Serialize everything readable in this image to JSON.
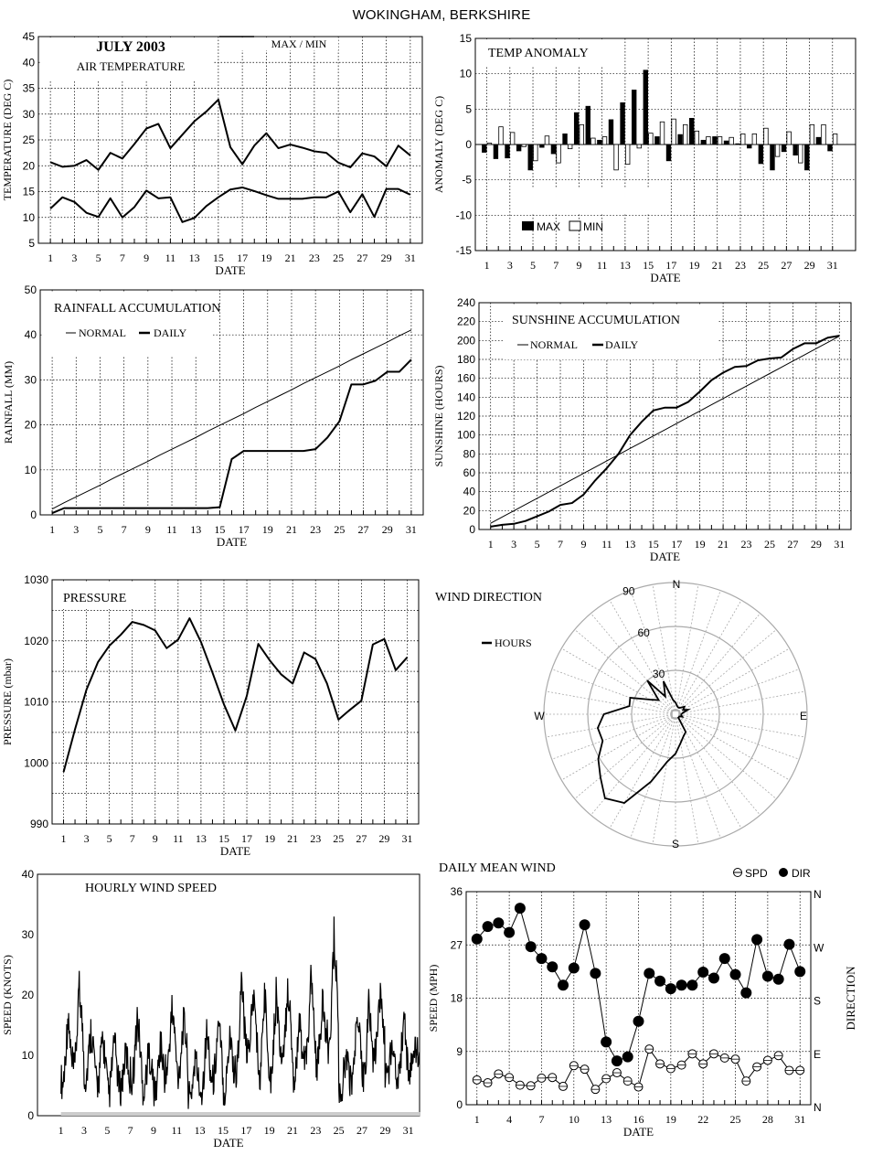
{
  "title": "WOKINGHAM, BERKSHIRE",
  "chart_data": [
    {
      "id": "air_temperature",
      "type": "line",
      "title": "AIR TEMPERATURE",
      "header": "JULY 2003",
      "legend": [
        "MAX / MIN"
      ],
      "xlabel": "DATE",
      "ylabel": "TEMPERATURE (DEG C)",
      "x": [
        1,
        2,
        3,
        4,
        5,
        6,
        7,
        8,
        9,
        10,
        11,
        12,
        13,
        14,
        15,
        16,
        17,
        18,
        19,
        20,
        21,
        22,
        23,
        24,
        25,
        26,
        27,
        28,
        29,
        30,
        31
      ],
      "xticks": [
        "1",
        "3",
        "5",
        "7",
        "9",
        "11",
        "13",
        "15",
        "17",
        "19",
        "21",
        "23",
        "25",
        "27",
        "29",
        "31"
      ],
      "ylim": [
        5,
        45
      ],
      "yticks": [
        "5",
        "10",
        "15",
        "20",
        "25",
        "30",
        "35",
        "40",
        "45"
      ],
      "grid": true,
      "series": [
        {
          "name": "MAX",
          "values": [
            20.7,
            19.8,
            20.0,
            21.1,
            19.2,
            22.5,
            21.4,
            24.2,
            27.2,
            28.1,
            23.4,
            26.0,
            28.6,
            30.5,
            32.8,
            23.6,
            20.3,
            23.9,
            26.3,
            23.4,
            24.1,
            23.5,
            22.8,
            22.5,
            20.6,
            19.7,
            22.4,
            21.8,
            19.9,
            23.9,
            22.0
          ]
        },
        {
          "name": "MIN",
          "values": [
            11.7,
            13.9,
            13.0,
            10.9,
            10.1,
            13.7,
            10.0,
            12.0,
            15.2,
            13.7,
            13.9,
            9.1,
            9.9,
            12.2,
            13.9,
            15.4,
            15.8,
            15.1,
            14.3,
            13.6,
            13.6,
            13.6,
            13.9,
            13.9,
            15.0,
            11.0,
            14.5,
            10.1,
            15.5,
            15.5,
            14.4
          ]
        }
      ]
    },
    {
      "id": "temp_anomaly",
      "type": "bar",
      "title": "TEMP ANOMALY",
      "xlabel": "DATE",
      "ylabel": "ANOMALY (DEG C)",
      "x": [
        1,
        2,
        3,
        4,
        5,
        6,
        7,
        8,
        9,
        10,
        11,
        12,
        13,
        14,
        15,
        16,
        17,
        18,
        19,
        20,
        21,
        22,
        23,
        24,
        25,
        26,
        27,
        28,
        29,
        30,
        31
      ],
      "xticks": [
        "1",
        "3",
        "5",
        "7",
        "9",
        "11",
        "13",
        "15",
        "17",
        "19",
        "21",
        "23",
        "25",
        "27",
        "29",
        "31"
      ],
      "ylim": [
        -15,
        15
      ],
      "yticks": [
        "-15",
        "-10",
        "-5",
        "0",
        "5",
        "10",
        "15"
      ],
      "grid": true,
      "legend_position": "bottom-left",
      "series": [
        {
          "name": "MAX",
          "values": [
            -1.1,
            -2.0,
            -1.9,
            -0.9,
            -3.6,
            -0.4,
            -1.3,
            1.5,
            4.5,
            5.4,
            0.6,
            3.5,
            5.9,
            7.7,
            10.5,
            1.1,
            -2.3,
            1.4,
            3.7,
            0.6,
            1.1,
            0.5,
            0.1,
            -0.5,
            -2.7,
            -3.6,
            -1.0,
            -1.5,
            -3.6,
            1.0,
            -0.9
          ]
        },
        {
          "name": "MIN",
          "values": [
            0.2,
            2.5,
            1.7,
            -0.3,
            -2.3,
            1.2,
            -2.6,
            -0.6,
            2.8,
            0.9,
            1.1,
            -3.6,
            -2.8,
            -0.5,
            1.6,
            3.2,
            3.6,
            2.8,
            1.9,
            1.1,
            1.1,
            1.0,
            1.5,
            1.5,
            2.3,
            -1.7,
            1.8,
            -2.6,
            2.8,
            2.8,
            1.5
          ]
        }
      ]
    },
    {
      "id": "rainfall_accumulation",
      "type": "line",
      "title": "RAINFALL ACCUMULATION",
      "xlabel": "DATE",
      "ylabel": "RAINFALL (MM)",
      "x": [
        1,
        2,
        3,
        4,
        5,
        6,
        7,
        8,
        9,
        10,
        11,
        12,
        13,
        14,
        15,
        16,
        17,
        18,
        19,
        20,
        21,
        22,
        23,
        24,
        25,
        26,
        27,
        28,
        29,
        30,
        31
      ],
      "xticks": [
        "1",
        "3",
        "5",
        "7",
        "9",
        "11",
        "13",
        "15",
        "17",
        "19",
        "21",
        "23",
        "25",
        "27",
        "29",
        "31"
      ],
      "ylim": [
        0,
        50
      ],
      "yticks": [
        "0",
        "10",
        "20",
        "30",
        "40",
        "50"
      ],
      "grid": true,
      "series": [
        {
          "name": "NORMAL",
          "values": [
            1.3,
            2.7,
            4.0,
            5.3,
            6.6,
            8.0,
            9.3,
            10.6,
            11.9,
            13.3,
            14.6,
            15.9,
            17.2,
            18.6,
            19.9,
            21.2,
            22.5,
            23.9,
            25.2,
            26.5,
            27.8,
            29.2,
            30.5,
            31.8,
            33.1,
            34.5,
            35.8,
            37.1,
            38.4,
            39.8,
            41.1
          ]
        },
        {
          "name": "DAILY",
          "values": [
            0.4,
            1.5,
            1.5,
            1.5,
            1.5,
            1.5,
            1.5,
            1.5,
            1.5,
            1.5,
            1.5,
            1.5,
            1.5,
            1.5,
            1.7,
            12.4,
            14.2,
            14.2,
            14.2,
            14.2,
            14.2,
            14.2,
            14.6,
            17.2,
            20.8,
            29.0,
            29.0,
            29.8,
            31.8,
            31.8,
            34.5
          ]
        }
      ]
    },
    {
      "id": "sunshine_accumulation",
      "type": "line",
      "title": "SUNSHINE ACCUMULATION",
      "xlabel": "DATE",
      "ylabel": "SUNSHINE (HOURS)",
      "x": [
        1,
        2,
        3,
        4,
        5,
        6,
        7,
        8,
        9,
        10,
        11,
        12,
        13,
        14,
        15,
        16,
        17,
        18,
        19,
        20,
        21,
        22,
        23,
        24,
        25,
        26,
        27,
        28,
        29,
        30,
        31
      ],
      "xticks": [
        "1",
        "3",
        "5",
        "7",
        "9",
        "11",
        "13",
        "15",
        "17",
        "19",
        "21",
        "23",
        "25",
        "27",
        "29",
        "31"
      ],
      "ylim": [
        0,
        240
      ],
      "yticks": [
        "0",
        "20",
        "40",
        "60",
        "80",
        "100",
        "120",
        "140",
        "160",
        "180",
        "200",
        "220",
        "240"
      ],
      "grid": true,
      "series": [
        {
          "name": "NORMAL",
          "values": [
            6.6,
            13.2,
            19.8,
            26.4,
            33.0,
            39.6,
            46.2,
            52.8,
            59.4,
            66.0,
            72.6,
            79.2,
            85.8,
            92.4,
            99.0,
            105.6,
            112.2,
            118.8,
            125.4,
            132.0,
            138.6,
            145.2,
            151.8,
            158.4,
            165.0,
            171.6,
            178.2,
            184.8,
            191.4,
            198.0,
            204.6
          ]
        },
        {
          "name": "DAILY",
          "values": [
            3,
            5,
            6,
            9,
            14,
            19,
            26,
            28,
            37,
            52,
            65,
            80,
            100,
            114,
            126,
            129,
            129,
            135,
            146,
            158,
            166,
            172,
            173,
            179,
            181,
            182,
            191,
            197,
            197,
            203,
            205
          ]
        }
      ]
    },
    {
      "id": "pressure",
      "type": "line",
      "title": "PRESSURE",
      "xlabel": "DATE",
      "ylabel": "PRESSURE (mbar)",
      "x": [
        1,
        2,
        3,
        4,
        5,
        6,
        7,
        8,
        9,
        10,
        11,
        12,
        13,
        14,
        15,
        16,
        17,
        18,
        19,
        20,
        21,
        22,
        23,
        24,
        25,
        26,
        27,
        28,
        29,
        30,
        31
      ],
      "xticks": [
        "1",
        "3",
        "5",
        "7",
        "9",
        "11",
        "13",
        "15",
        "17",
        "19",
        "21",
        "23",
        "25",
        "27",
        "29",
        "31"
      ],
      "ylim": [
        990,
        1030
      ],
      "yticks": [
        "990",
        "1000",
        "1010",
        "1020",
        "1030"
      ],
      "grid": true,
      "series": [
        {
          "name": "PRESSURE",
          "values": [
            998.5,
            1005.5,
            1012.0,
            1016.5,
            1019.2,
            1021.0,
            1023.1,
            1022.6,
            1021.7,
            1018.8,
            1020.2,
            1023.7,
            1019.8,
            1014.8,
            1009.6,
            1005.3,
            1011.0,
            1019.5,
            1016.8,
            1014.5,
            1013.0,
            1018.1,
            1017.0,
            1013.0,
            1007.1,
            1008.7,
            1010.2,
            1019.4,
            1020.3,
            1015.2,
            1017.3
          ]
        }
      ]
    },
    {
      "id": "wind_direction",
      "type": "polar",
      "title": "WIND DIRECTION",
      "legend": [
        "HOURS"
      ],
      "radial_ticks": [
        "30",
        "60",
        "90"
      ],
      "rlim": [
        0,
        90
      ],
      "compass_labels": [
        "N",
        "E",
        "S",
        "W"
      ],
      "theta_step_degrees": 10,
      "theta_degrees": [
        0,
        10,
        20,
        30,
        40,
        50,
        60,
        70,
        80,
        90,
        100,
        110,
        120,
        130,
        140,
        150,
        160,
        170,
        180,
        190,
        200,
        210,
        220,
        230,
        240,
        250,
        260,
        270,
        280,
        290,
        300,
        310,
        320,
        330,
        340,
        350
      ],
      "values": [
        8,
        6,
        5,
        5,
        6,
        8,
        6,
        9,
        5,
        4,
        4,
        5,
        3,
        3,
        3,
        14,
        16,
        20,
        27,
        33,
        49,
        70,
        75,
        67,
        61,
        53,
        54,
        49,
        32,
        33,
        20,
        15,
        30,
        14,
        24,
        10
      ]
    },
    {
      "id": "hourly_wind_speed",
      "type": "line",
      "title": "HOURLY WIND SPEED",
      "xlabel": "DATE",
      "ylabel": "SPEED (KNOTS)",
      "xticks": [
        "1",
        "3",
        "5",
        "7",
        "9",
        "11",
        "13",
        "15",
        "17",
        "19",
        "21",
        "23",
        "25",
        "27",
        "29",
        "31"
      ],
      "xlim": [
        1,
        32
      ],
      "ylim": [
        0,
        40
      ],
      "yticks": [
        "0",
        "10",
        "20",
        "30",
        "40"
      ],
      "grid": false,
      "daily_peak_knots": [
        18,
        24,
        16,
        14,
        14,
        12,
        18,
        12,
        14,
        20,
        18,
        11,
        16,
        17,
        16,
        25,
        22,
        23,
        23,
        24,
        17,
        25,
        21,
        33,
        12,
        18,
        21,
        22,
        13,
        18,
        13
      ],
      "daily_low_knots": [
        1,
        2,
        3,
        2,
        0,
        2,
        2,
        2,
        0,
        3,
        3,
        0,
        0,
        2,
        0,
        1,
        6,
        0,
        1,
        3,
        3,
        3,
        4,
        4,
        0,
        2,
        1,
        6,
        4,
        2,
        5
      ]
    },
    {
      "id": "daily_mean_wind",
      "type": "scatter",
      "title": "DAILY MEAN WIND",
      "xlabel": "DATE",
      "ylabel": "SPEED (MPH)",
      "y2label": "DIRECTION",
      "x": [
        1,
        2,
        3,
        4,
        5,
        6,
        7,
        8,
        9,
        10,
        11,
        12,
        13,
        14,
        15,
        16,
        17,
        18,
        19,
        20,
        21,
        22,
        23,
        24,
        25,
        26,
        27,
        28,
        29,
        30,
        31
      ],
      "xticks": [
        "1",
        "4",
        "7",
        "10",
        "13",
        "16",
        "19",
        "22",
        "25",
        "28",
        "31"
      ],
      "ylim": [
        0,
        36
      ],
      "yticks": [
        "0",
        "9",
        "18",
        "27",
        "36"
      ],
      "y2ticks": [
        "N",
        "E",
        "S",
        "W",
        "N"
      ],
      "y2lim_degrees": [
        0,
        360
      ],
      "grid": true,
      "legend_position": "top-right",
      "series": [
        {
          "name": "SPD",
          "marker": "open-circle",
          "values": [
            4.2,
            3.7,
            5.2,
            4.6,
            3.3,
            3.2,
            4.5,
            4.6,
            3.1,
            6.6,
            6.0,
            2.6,
            4.4,
            5.4,
            4.0,
            3.0,
            9.4,
            6.9,
            6.1,
            6.7,
            8.6,
            6.9,
            8.6,
            7.9,
            7.7,
            4.0,
            6.4,
            7.5,
            8.3,
            5.8,
            5.8
          ]
        },
        {
          "name": "DIR",
          "marker": "filled-circle",
          "values": [
            28.0,
            30.1,
            30.7,
            29.1,
            33.2,
            26.7,
            24.7,
            23.3,
            20.2,
            23.1,
            30.4,
            22.2,
            10.6,
            7.4,
            8.1,
            14.1,
            22.2,
            20.9,
            19.6,
            20.2,
            20.2,
            22.4,
            21.4,
            24.7,
            22.0,
            18.9,
            27.9,
            21.7,
            21.2,
            27.1,
            22.5
          ]
        }
      ]
    }
  ]
}
